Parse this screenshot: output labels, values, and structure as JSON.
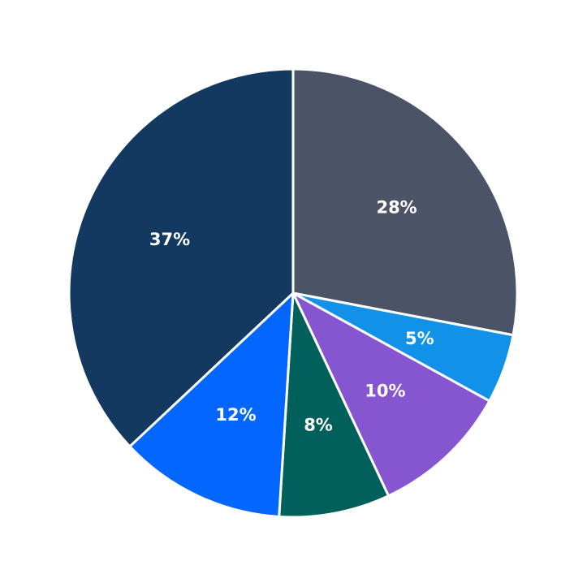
{
  "chart_data": {
    "type": "pie",
    "title": "",
    "start_angle_deg": 90,
    "direction": "clockwise",
    "center": [
      361,
      361
    ],
    "radius": 276,
    "slices": [
      {
        "label": "28%",
        "value": 28,
        "color": "#4a5466"
      },
      {
        "label": "5%",
        "value": 5,
        "color": "#1192e8"
      },
      {
        "label": "10%",
        "value": 10,
        "color": "#8556cf"
      },
      {
        "label": "8%",
        "value": 8,
        "color": "#02605c"
      },
      {
        "label": "12%",
        "value": 12,
        "color": "#0266ff"
      },
      {
        "label": "37%",
        "value": 37,
        "color": "#133961"
      }
    ],
    "legend": null,
    "edge_color": "#ffffff"
  }
}
